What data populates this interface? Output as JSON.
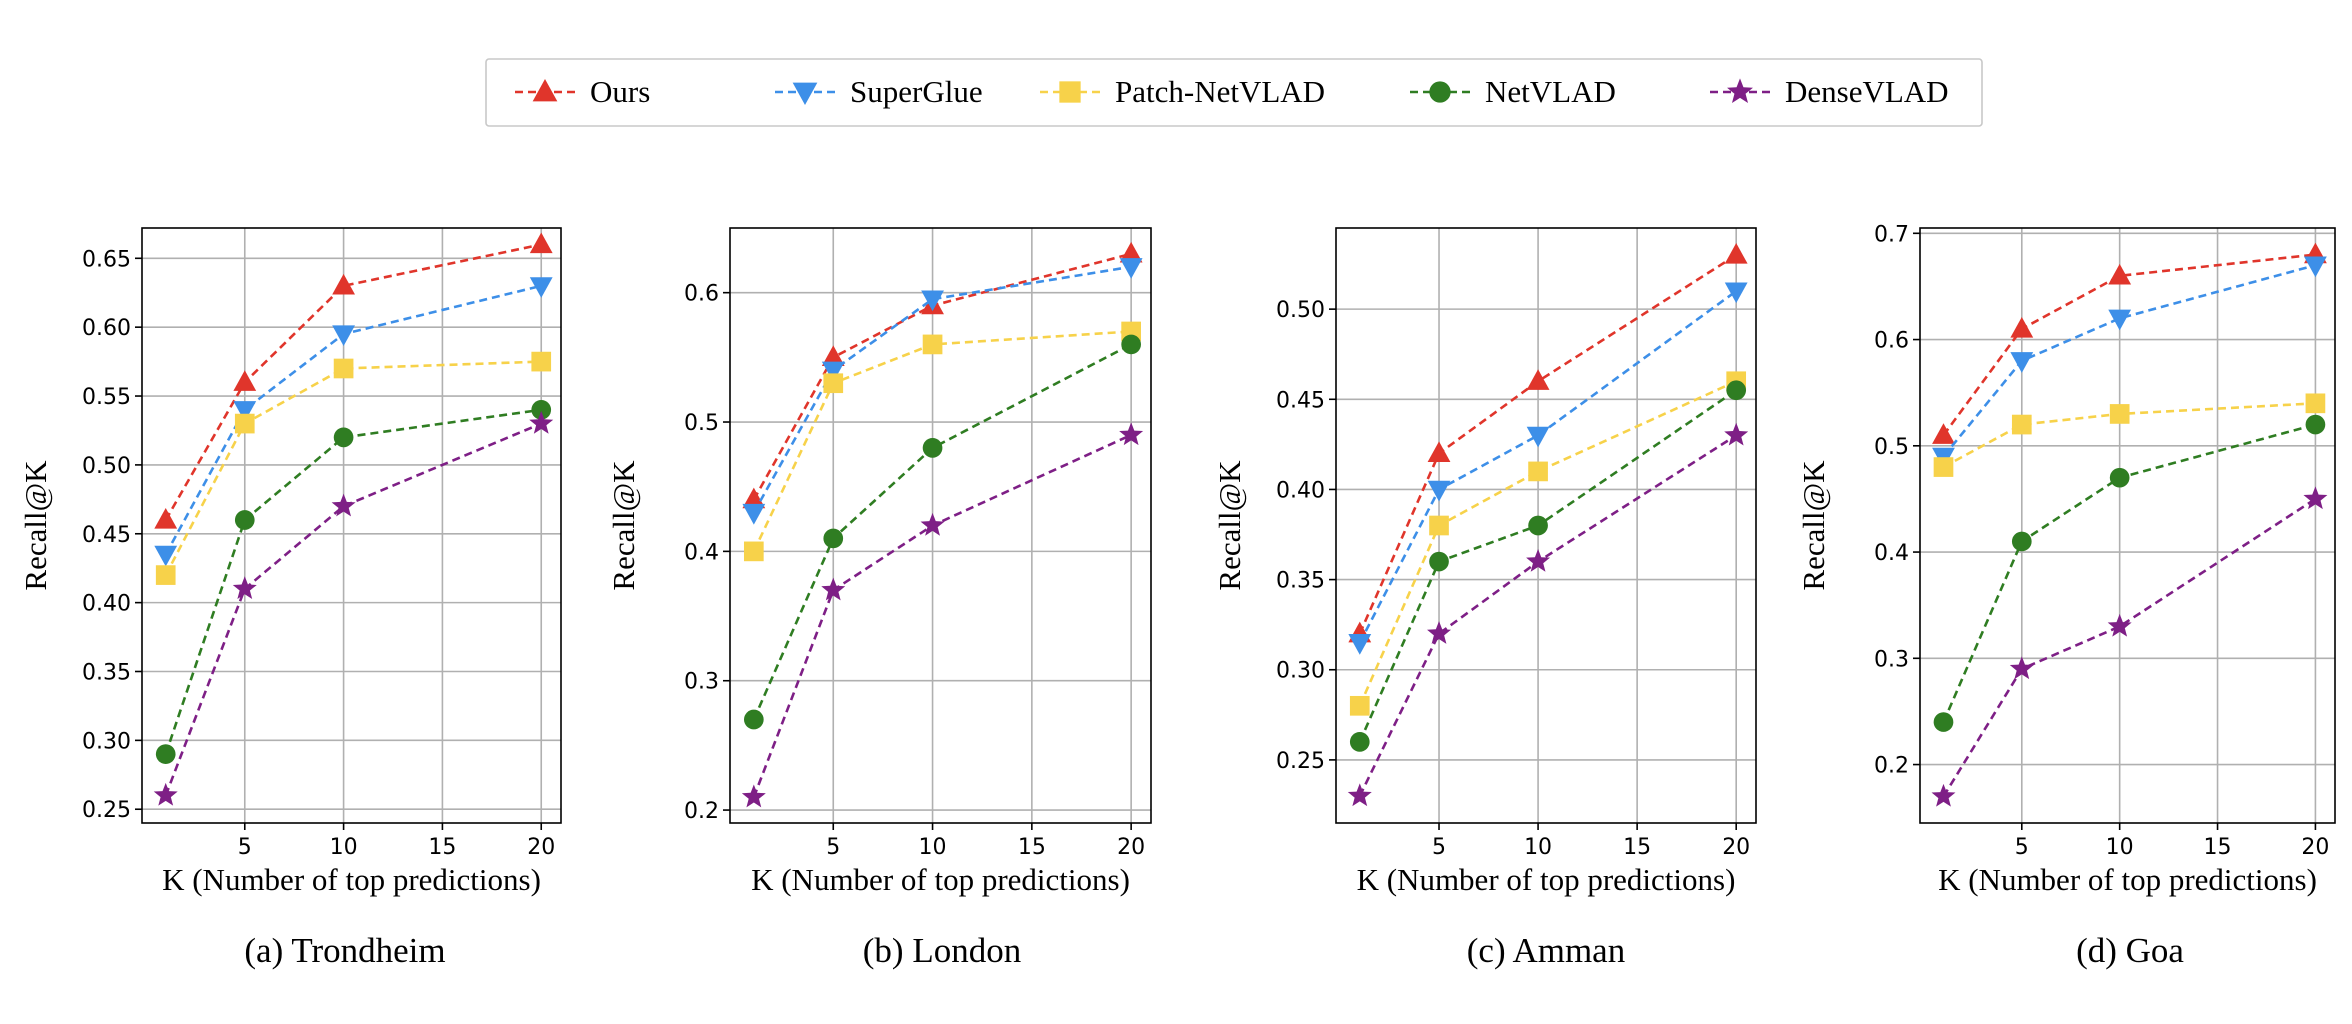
{
  "legend": {
    "items": [
      {
        "label": "Ours",
        "color": "#e0352b",
        "marker": "triangle-up"
      },
      {
        "label": "SuperGlue",
        "color": "#3d8fe8",
        "marker": "triangle-down"
      },
      {
        "label": "Patch-NetVLAD",
        "color": "#f7d24a",
        "marker": "square"
      },
      {
        "label": "NetVLAD",
        "color": "#2f7d22",
        "marker": "circle"
      },
      {
        "label": "DenseVLAD",
        "color": "#7e1f86",
        "marker": "star"
      }
    ]
  },
  "chart_data": [
    {
      "type": "line",
      "title": "(a) Trondheim",
      "xlabel": "K (Number of top predictions)",
      "ylabel": "Recall@K",
      "x": [
        1,
        5,
        10,
        20
      ],
      "xlim": [
        -0.2,
        21
      ],
      "ylim": [
        0.24,
        0.672
      ],
      "xticks": [
        5,
        10,
        15,
        20
      ],
      "yticks": [
        0.25,
        0.3,
        0.35,
        0.4,
        0.45,
        0.5,
        0.55,
        0.6,
        0.65
      ],
      "ytick_labels": [
        "0.25",
        "0.30",
        "0.35",
        "0.40",
        "0.45",
        "0.50",
        "0.55",
        "0.60",
        "0.65"
      ],
      "grid": true,
      "series": [
        {
          "name": "Ours",
          "values": [
            0.46,
            0.56,
            0.63,
            0.66
          ]
        },
        {
          "name": "SuperGlue",
          "values": [
            0.435,
            0.54,
            0.595,
            0.63
          ]
        },
        {
          "name": "Patch-NetVLAD",
          "values": [
            0.42,
            0.53,
            0.57,
            0.575
          ]
        },
        {
          "name": "NetVLAD",
          "values": [
            0.29,
            0.46,
            0.52,
            0.54
          ]
        },
        {
          "name": "DenseVLAD",
          "values": [
            0.26,
            0.41,
            0.47,
            0.53
          ]
        }
      ]
    },
    {
      "type": "line",
      "title": "(b) London",
      "xlabel": "K (Number of top predictions)",
      "ylabel": "Recall@K",
      "x": [
        1,
        5,
        10,
        20
      ],
      "xlim": [
        -0.2,
        21
      ],
      "ylim": [
        0.19,
        0.65
      ],
      "xticks": [
        5,
        10,
        15,
        20
      ],
      "yticks": [
        0.2,
        0.3,
        0.4,
        0.5,
        0.6
      ],
      "ytick_labels": [
        "0.2",
        "0.3",
        "0.4",
        "0.5",
        "0.6"
      ],
      "grid": true,
      "series": [
        {
          "name": "Ours",
          "values": [
            0.44,
            0.55,
            0.59,
            0.63
          ]
        },
        {
          "name": "SuperGlue",
          "values": [
            0.43,
            0.54,
            0.595,
            0.62
          ]
        },
        {
          "name": "Patch-NetVLAD",
          "values": [
            0.4,
            0.53,
            0.56,
            0.57
          ]
        },
        {
          "name": "NetVLAD",
          "values": [
            0.27,
            0.41,
            0.48,
            0.56
          ]
        },
        {
          "name": "DenseVLAD",
          "values": [
            0.21,
            0.37,
            0.42,
            0.49
          ]
        }
      ]
    },
    {
      "type": "line",
      "title": "(c) Amman",
      "xlabel": "K (Number of top predictions)",
      "ylabel": "Recall@K",
      "x": [
        1,
        5,
        10,
        20
      ],
      "xlim": [
        -0.2,
        21
      ],
      "ylim": [
        0.215,
        0.545
      ],
      "xticks": [
        5,
        10,
        15,
        20
      ],
      "yticks": [
        0.25,
        0.3,
        0.35,
        0.4,
        0.45,
        0.5
      ],
      "ytick_labels": [
        "0.25",
        "0.30",
        "0.35",
        "0.40",
        "0.45",
        "0.50"
      ],
      "grid": true,
      "series": [
        {
          "name": "Ours",
          "values": [
            0.32,
            0.42,
            0.46,
            0.53
          ]
        },
        {
          "name": "SuperGlue",
          "values": [
            0.315,
            0.4,
            0.43,
            0.51
          ]
        },
        {
          "name": "Patch-NetVLAD",
          "values": [
            0.28,
            0.38,
            0.41,
            0.46
          ]
        },
        {
          "name": "NetVLAD",
          "values": [
            0.26,
            0.36,
            0.38,
            0.455
          ]
        },
        {
          "name": "DenseVLAD",
          "values": [
            0.23,
            0.32,
            0.36,
            0.43
          ]
        }
      ]
    },
    {
      "type": "line",
      "title": "(d) Goa",
      "xlabel": "K (Number of top predictions)",
      "ylabel": "Recall@K",
      "x": [
        1,
        5,
        10,
        20
      ],
      "xlim": [
        -0.2,
        21
      ],
      "ylim": [
        0.145,
        0.705
      ],
      "xticks": [
        5,
        10,
        15,
        20
      ],
      "yticks": [
        0.2,
        0.3,
        0.4,
        0.5,
        0.6,
        0.7
      ],
      "ytick_labels": [
        "0.2",
        "0.3",
        "0.4",
        "0.5",
        "0.6",
        "0.7"
      ],
      "grid": true,
      "series": [
        {
          "name": "Ours",
          "values": [
            0.51,
            0.61,
            0.66,
            0.68
          ]
        },
        {
          "name": "SuperGlue",
          "values": [
            0.49,
            0.58,
            0.62,
            0.67
          ]
        },
        {
          "name": "Patch-NetVLAD",
          "values": [
            0.48,
            0.52,
            0.53,
            0.54
          ]
        },
        {
          "name": "NetVLAD",
          "values": [
            0.24,
            0.41,
            0.47,
            0.52
          ]
        },
        {
          "name": "DenseVLAD",
          "values": [
            0.17,
            0.29,
            0.33,
            0.45
          ]
        }
      ]
    }
  ]
}
